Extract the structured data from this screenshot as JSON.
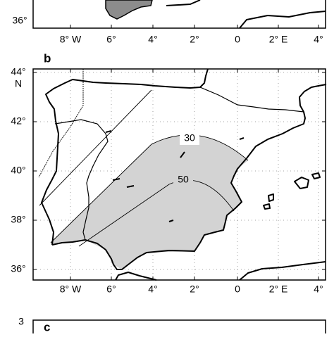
{
  "panels": [
    {
      "y_tick_labels": [
        "36°"
      ],
      "x_tick_labels": [
        "8° W",
        "6°",
        "4°",
        "2°",
        "0",
        "2° E",
        "4°"
      ]
    },
    {
      "label": "b",
      "y_tick_labels": [
        "44°",
        "42°",
        "40°",
        "38°",
        "36°"
      ],
      "y_axis_unit": "N",
      "contour_labels": [
        "30",
        "50"
      ],
      "x_tick_labels": [
        "8° W",
        "6°",
        "4°",
        "2°",
        "0",
        "2° E",
        "4°"
      ]
    },
    {
      "label": "c",
      "y_tick_labels": [
        "3"
      ]
    }
  ]
}
